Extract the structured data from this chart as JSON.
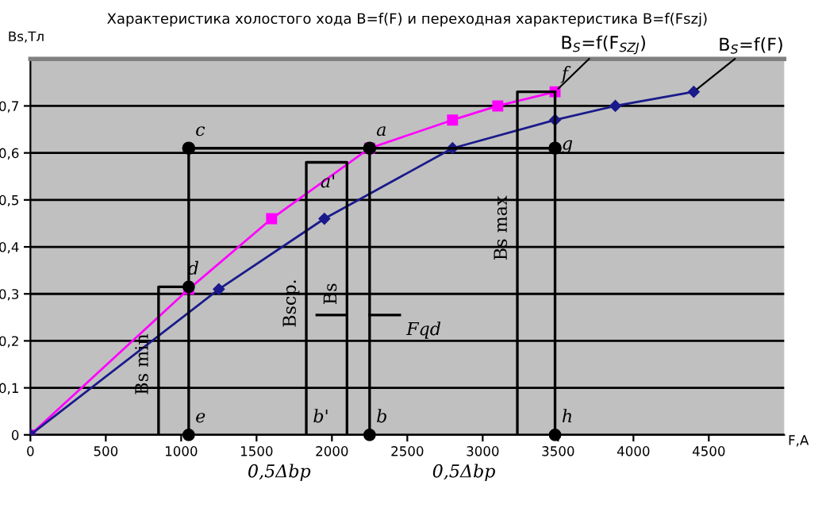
{
  "chart_data": {
    "type": "line",
    "title": "Характеристика холостого хода B=f(F) и переходная характеристика B=f(Fszj)",
    "xlabel": "F,A",
    "ylabel": "Bs,Тл",
    "xlim": [
      0,
      5000
    ],
    "ylim": [
      0,
      0.8
    ],
    "xticks": [
      0,
      500,
      1000,
      1500,
      2000,
      2500,
      3000,
      3500,
      4000,
      4500
    ],
    "yticks": [
      0,
      {
        "value": 0.1,
        "label": "0,1"
      },
      {
        "value": 0.2,
        "label": "0,2"
      },
      {
        "value": 0.3,
        "label": "0,3"
      },
      {
        "value": 0.4,
        "label": "0,4"
      },
      {
        "value": 0.5,
        "label": "0,5"
      },
      {
        "value": 0.6,
        "label": "0,6"
      },
      {
        "value": 0.7,
        "label": "0,7"
      }
    ],
    "grid": "y",
    "line_style": "solid",
    "series": [
      {
        "name": "B$_{S}$=f(F$_{SZJ}$)",
        "color": "#ff00ff",
        "marker": "square",
        "x": [
          0,
          1050,
          1600,
          2250,
          2800,
          3100,
          3480
        ],
        "values": [
          0,
          0.31,
          0.46,
          0.61,
          0.67,
          0.7,
          0.73
        ]
      },
      {
        "name": "B$_{S}$=f(F)",
        "color": "#1a1a8c",
        "marker": "diamond",
        "x": [
          0,
          1250,
          1950,
          2800,
          3480,
          3880,
          4400
        ],
        "values": [
          0,
          0.31,
          0.46,
          0.61,
          0.67,
          0.7,
          0.73
        ]
      },
      {
        "color": "#000000",
        "marker": "circle",
        "x": [
          1050,
          2250,
          3480
        ],
        "values": [
          0.61,
          0.61,
          0.61
        ]
      },
      {
        "color": "#000000",
        "marker": "none",
        "x": [
          1050,
          1050
        ],
        "values": [
          0.61,
          0
        ]
      },
      {
        "color": "#000000",
        "marker": "none",
        "x": [
          2250,
          2250
        ],
        "values": [
          0.61,
          0
        ]
      },
      {
        "color": "#000000",
        "marker": "none",
        "x": [
          3480,
          3480
        ],
        "values": [
          0.73,
          0
        ]
      },
      {
        "color": "#000000",
        "marker": "none",
        "x": [
          850,
          850,
          1050
        ],
        "values": [
          0,
          0.315,
          0.315
        ]
      },
      {
        "color": "#000000",
        "marker": "none",
        "x": [
          1830,
          1830,
          2100,
          2100
        ],
        "values": [
          0,
          0.58,
          0.58,
          0
        ]
      },
      {
        "color": "#000000",
        "marker": "none",
        "x": [
          3230,
          3230,
          3480
        ],
        "values": [
          0,
          0.73,
          0.73
        ]
      },
      {
        "color": "#000000",
        "marker": "none",
        "x": [
          1900,
          2100
        ],
        "values": [
          0.255,
          0.255
        ]
      },
      {
        "color": "#000000",
        "marker": "none",
        "x": [
          2450,
          2250
        ],
        "values": [
          0.255,
          0.255
        ]
      },
      {
        "type": "scatter",
        "color": "#000000",
        "marker": "circle",
        "x": [
          1050,
          1050,
          2250,
          3480
        ],
        "values": [
          0.315,
          0,
          0,
          0
        ]
      }
    ],
    "annotations": [
      {
        "text": "c",
        "x": 1050,
        "y": 0.61
      },
      {
        "text": "a",
        "x": 2250,
        "y": 0.61
      },
      {
        "text": "g",
        "x": 3480,
        "y": 0.58
      },
      {
        "text": "d",
        "x": 1000,
        "y": 0.315
      },
      {
        "text": "e",
        "x": 1050,
        "y": 0
      },
      {
        "text": "b'",
        "x": 1830,
        "y": 0
      },
      {
        "text": "b",
        "x": 2250,
        "y": 0
      },
      {
        "text": "h",
        "x": 3480,
        "y": 0
      },
      {
        "text": "a'",
        "x": 1880,
        "y": 0.5
      },
      {
        "text": "f",
        "x": 3480,
        "y": 0.73
      },
      {
        "text": "Bs min",
        "x": 850,
        "y": 0.15
      },
      {
        "text": "Bsср.",
        "x": 1830,
        "y": 0.28
      },
      {
        "text": "Bs",
        "x": 2100,
        "y": 0.3
      },
      {
        "text": "Bs max",
        "x": 3230,
        "y": 0.44
      },
      {
        "text": "Fqd",
        "x": 2450,
        "y": 0.255
      },
      "0,5Δbp",
      "0,5Δbp"
    ]
  }
}
